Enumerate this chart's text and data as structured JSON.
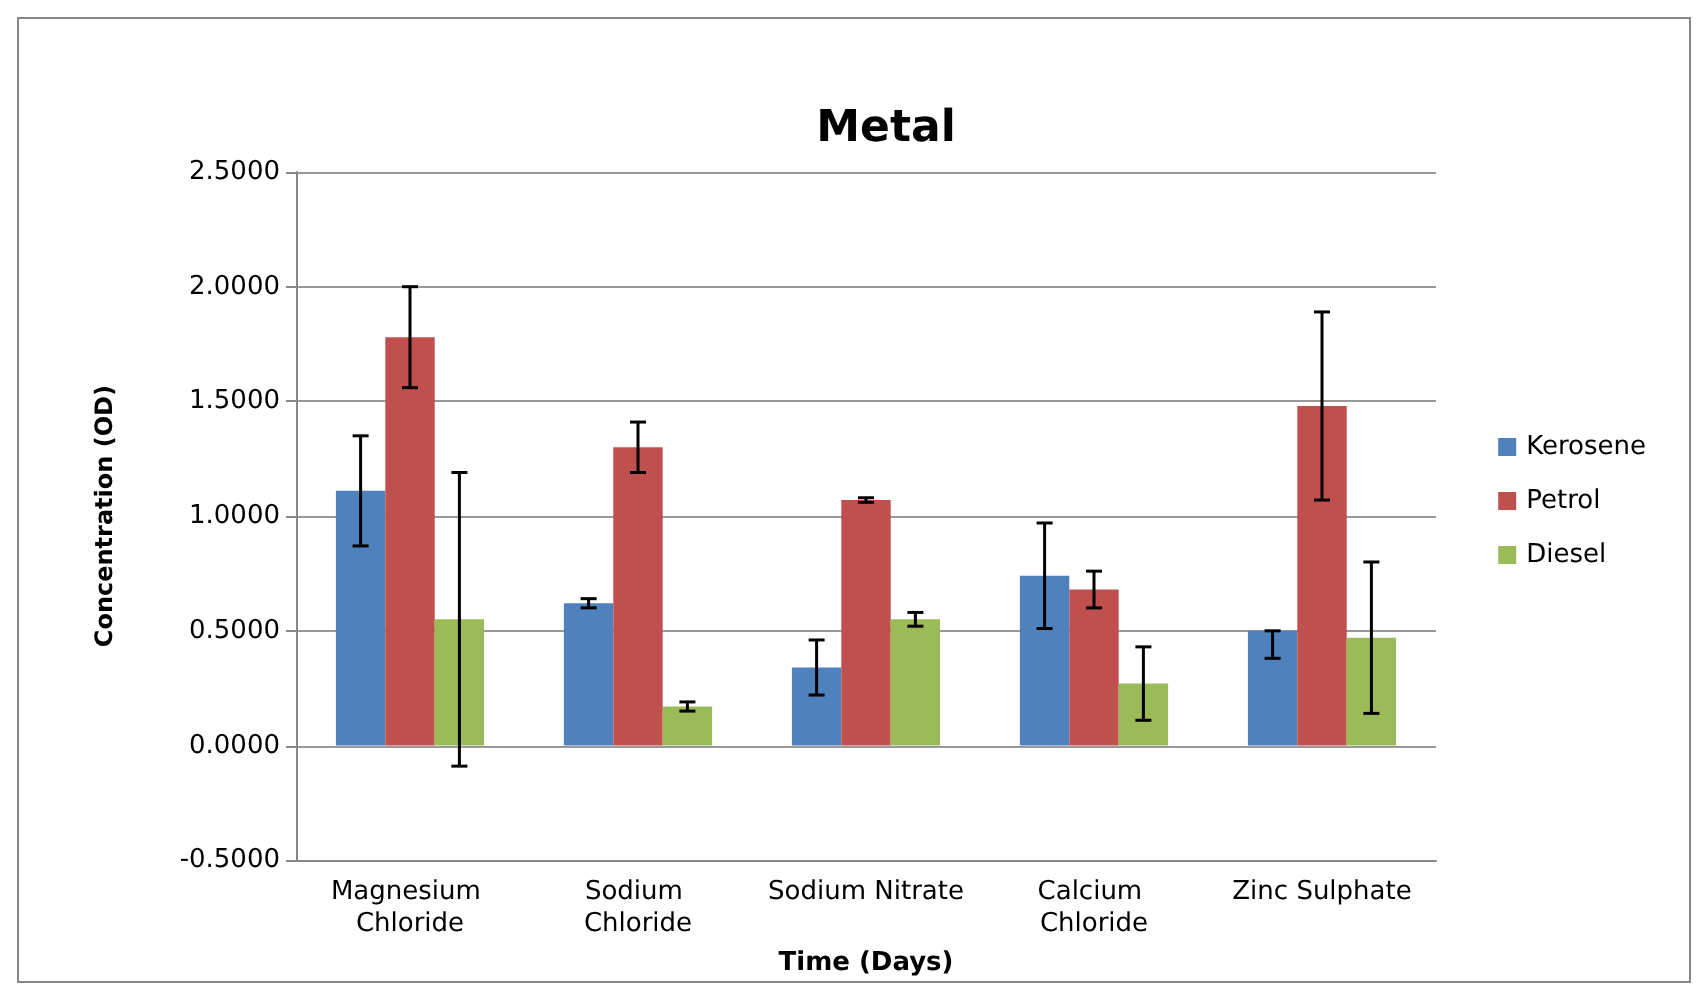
{
  "chart_data": {
    "type": "bar",
    "title": "Metal",
    "xlabel": "Time (Days)",
    "ylabel": "Concentration (OD)",
    "categories": [
      "Magnesium Chloride",
      "Sodium Chloride",
      "Sodium Nitrate",
      "Calcium Chloride",
      "Zinc Sulphate"
    ],
    "series": [
      {
        "name": "Kerosene",
        "color": "#4f81bd",
        "values": [
          1.11,
          0.62,
          0.34,
          0.74,
          0.5
        ],
        "errors": [
          0.24,
          0.02,
          0.12,
          0.23,
          [
            0.38,
            0.5
          ]
        ]
      },
      {
        "name": "Petrol",
        "color": "#c0504d",
        "values": [
          1.78,
          1.3,
          1.07,
          0.68,
          1.48
        ],
        "errors": [
          0.22,
          0.11,
          0.01,
          0.08,
          0.41
        ]
      },
      {
        "name": "Diesel",
        "color": "#9bbb59",
        "values": [
          0.55,
          0.17,
          0.55,
          0.27,
          0.47
        ],
        "errors": [
          0.64,
          0.02,
          0.03,
          0.16,
          0.33
        ]
      }
    ],
    "ylim": [
      -0.5,
      2.5
    ],
    "yticks": [
      {
        "value": -0.5,
        "label": "-0.5000"
      },
      {
        "value": 0,
        "label": "0.0000"
      },
      {
        "value": 0.5,
        "label": "0.5000"
      },
      {
        "value": 1,
        "label": "1.0000"
      },
      {
        "value": 1.5,
        "label": "1.5000"
      },
      {
        "value": 2,
        "label": "2.0000"
      },
      {
        "value": 2.5,
        "label": "2.5000"
      }
    ],
    "grid": "y",
    "legend": "right"
  }
}
